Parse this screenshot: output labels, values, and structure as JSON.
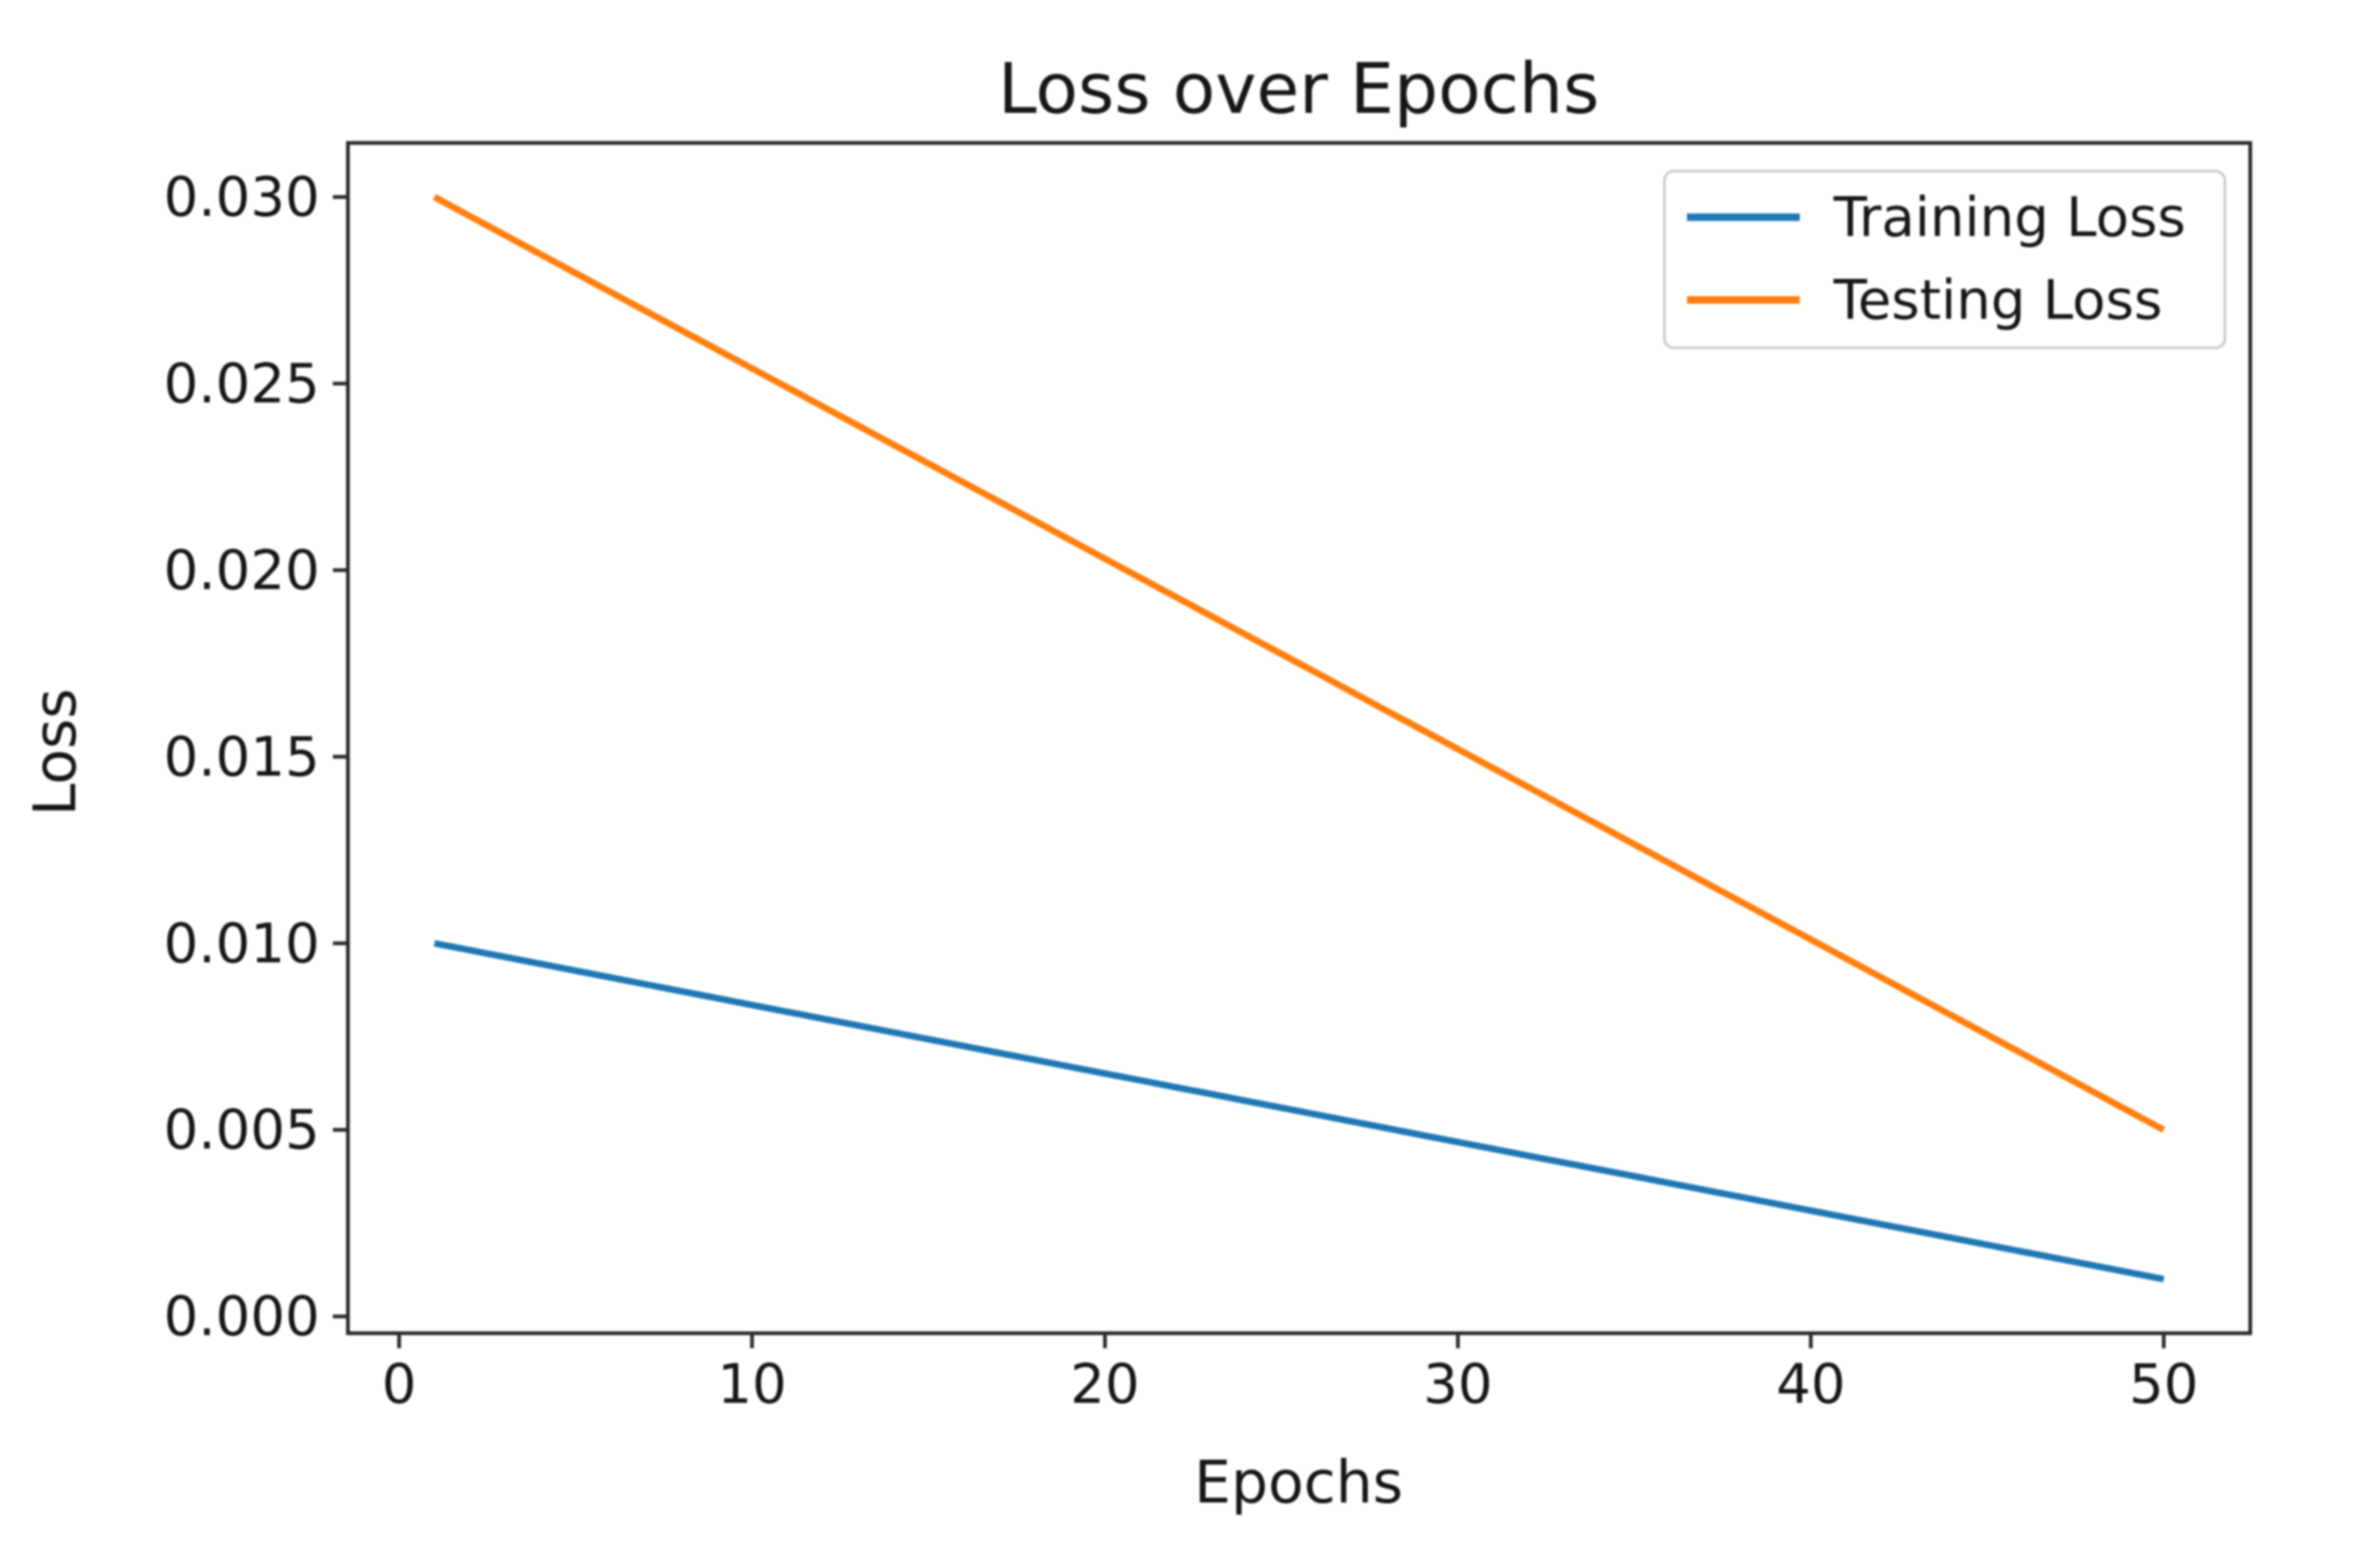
{
  "figure": {
    "background_color": "#ffffff",
    "axes_color": "#2b2b2b",
    "text_color": "#161616",
    "legend_border_color": "#cccccc"
  },
  "chart_data": {
    "type": "line",
    "title": "Loss over Epochs",
    "xlabel": "Epochs",
    "ylabel": "Loss",
    "grid": false,
    "legend": {
      "position": "upper right",
      "frame": true
    },
    "xlim": [
      -1.45,
      52.45
    ],
    "ylim": [
      -0.00045,
      0.03145
    ],
    "xticks": [
      0,
      10,
      20,
      30,
      40,
      50
    ],
    "xtick_labels": [
      "0",
      "10",
      "20",
      "30",
      "40",
      "50"
    ],
    "yticks": [
      0.0,
      0.005,
      0.01,
      0.015,
      0.02,
      0.025,
      0.03
    ],
    "ytick_labels": [
      "0.000",
      "0.005",
      "0.010",
      "0.015",
      "0.020",
      "0.025",
      "0.030"
    ],
    "x": [
      1,
      2,
      3,
      4,
      5,
      6,
      7,
      8,
      9,
      10,
      11,
      12,
      13,
      14,
      15,
      16,
      17,
      18,
      19,
      20,
      21,
      22,
      23,
      24,
      25,
      26,
      27,
      28,
      29,
      30,
      31,
      32,
      33,
      34,
      35,
      36,
      37,
      38,
      39,
      40,
      41,
      42,
      43,
      44,
      45,
      46,
      47,
      48,
      49,
      50
    ],
    "series": [
      {
        "name": "Training Loss",
        "color": "#1f77b4",
        "values": [
          0.01,
          0.009816,
          0.009633,
          0.009449,
          0.009265,
          0.009082,
          0.008898,
          0.008714,
          0.008531,
          0.008347,
          0.008163,
          0.00798,
          0.007796,
          0.007612,
          0.007429,
          0.007245,
          0.007061,
          0.006878,
          0.006694,
          0.00651,
          0.006327,
          0.006143,
          0.005959,
          0.005776,
          0.005592,
          0.005408,
          0.005224,
          0.005041,
          0.004857,
          0.004673,
          0.00449,
          0.004306,
          0.004122,
          0.003939,
          0.003755,
          0.003571,
          0.003388,
          0.003204,
          0.00302,
          0.002837,
          0.002653,
          0.002469,
          0.002286,
          0.002102,
          0.001918,
          0.001735,
          0.001551,
          0.001367,
          0.001184,
          0.001
        ]
      },
      {
        "name": "Testing Loss",
        "color": "#ff7f0e",
        "values": [
          0.03,
          0.02949,
          0.02898,
          0.028469,
          0.027959,
          0.027449,
          0.026939,
          0.026429,
          0.025918,
          0.025408,
          0.024898,
          0.024388,
          0.023878,
          0.023367,
          0.022857,
          0.022347,
          0.021837,
          0.021327,
          0.020816,
          0.020306,
          0.019796,
          0.019286,
          0.018776,
          0.018265,
          0.017755,
          0.017245,
          0.016735,
          0.016224,
          0.015714,
          0.015204,
          0.014694,
          0.014184,
          0.013673,
          0.013163,
          0.012653,
          0.012143,
          0.011633,
          0.011122,
          0.010612,
          0.010102,
          0.009592,
          0.009082,
          0.008571,
          0.008061,
          0.007551,
          0.007041,
          0.006531,
          0.00602,
          0.00551,
          0.005
        ]
      }
    ]
  }
}
